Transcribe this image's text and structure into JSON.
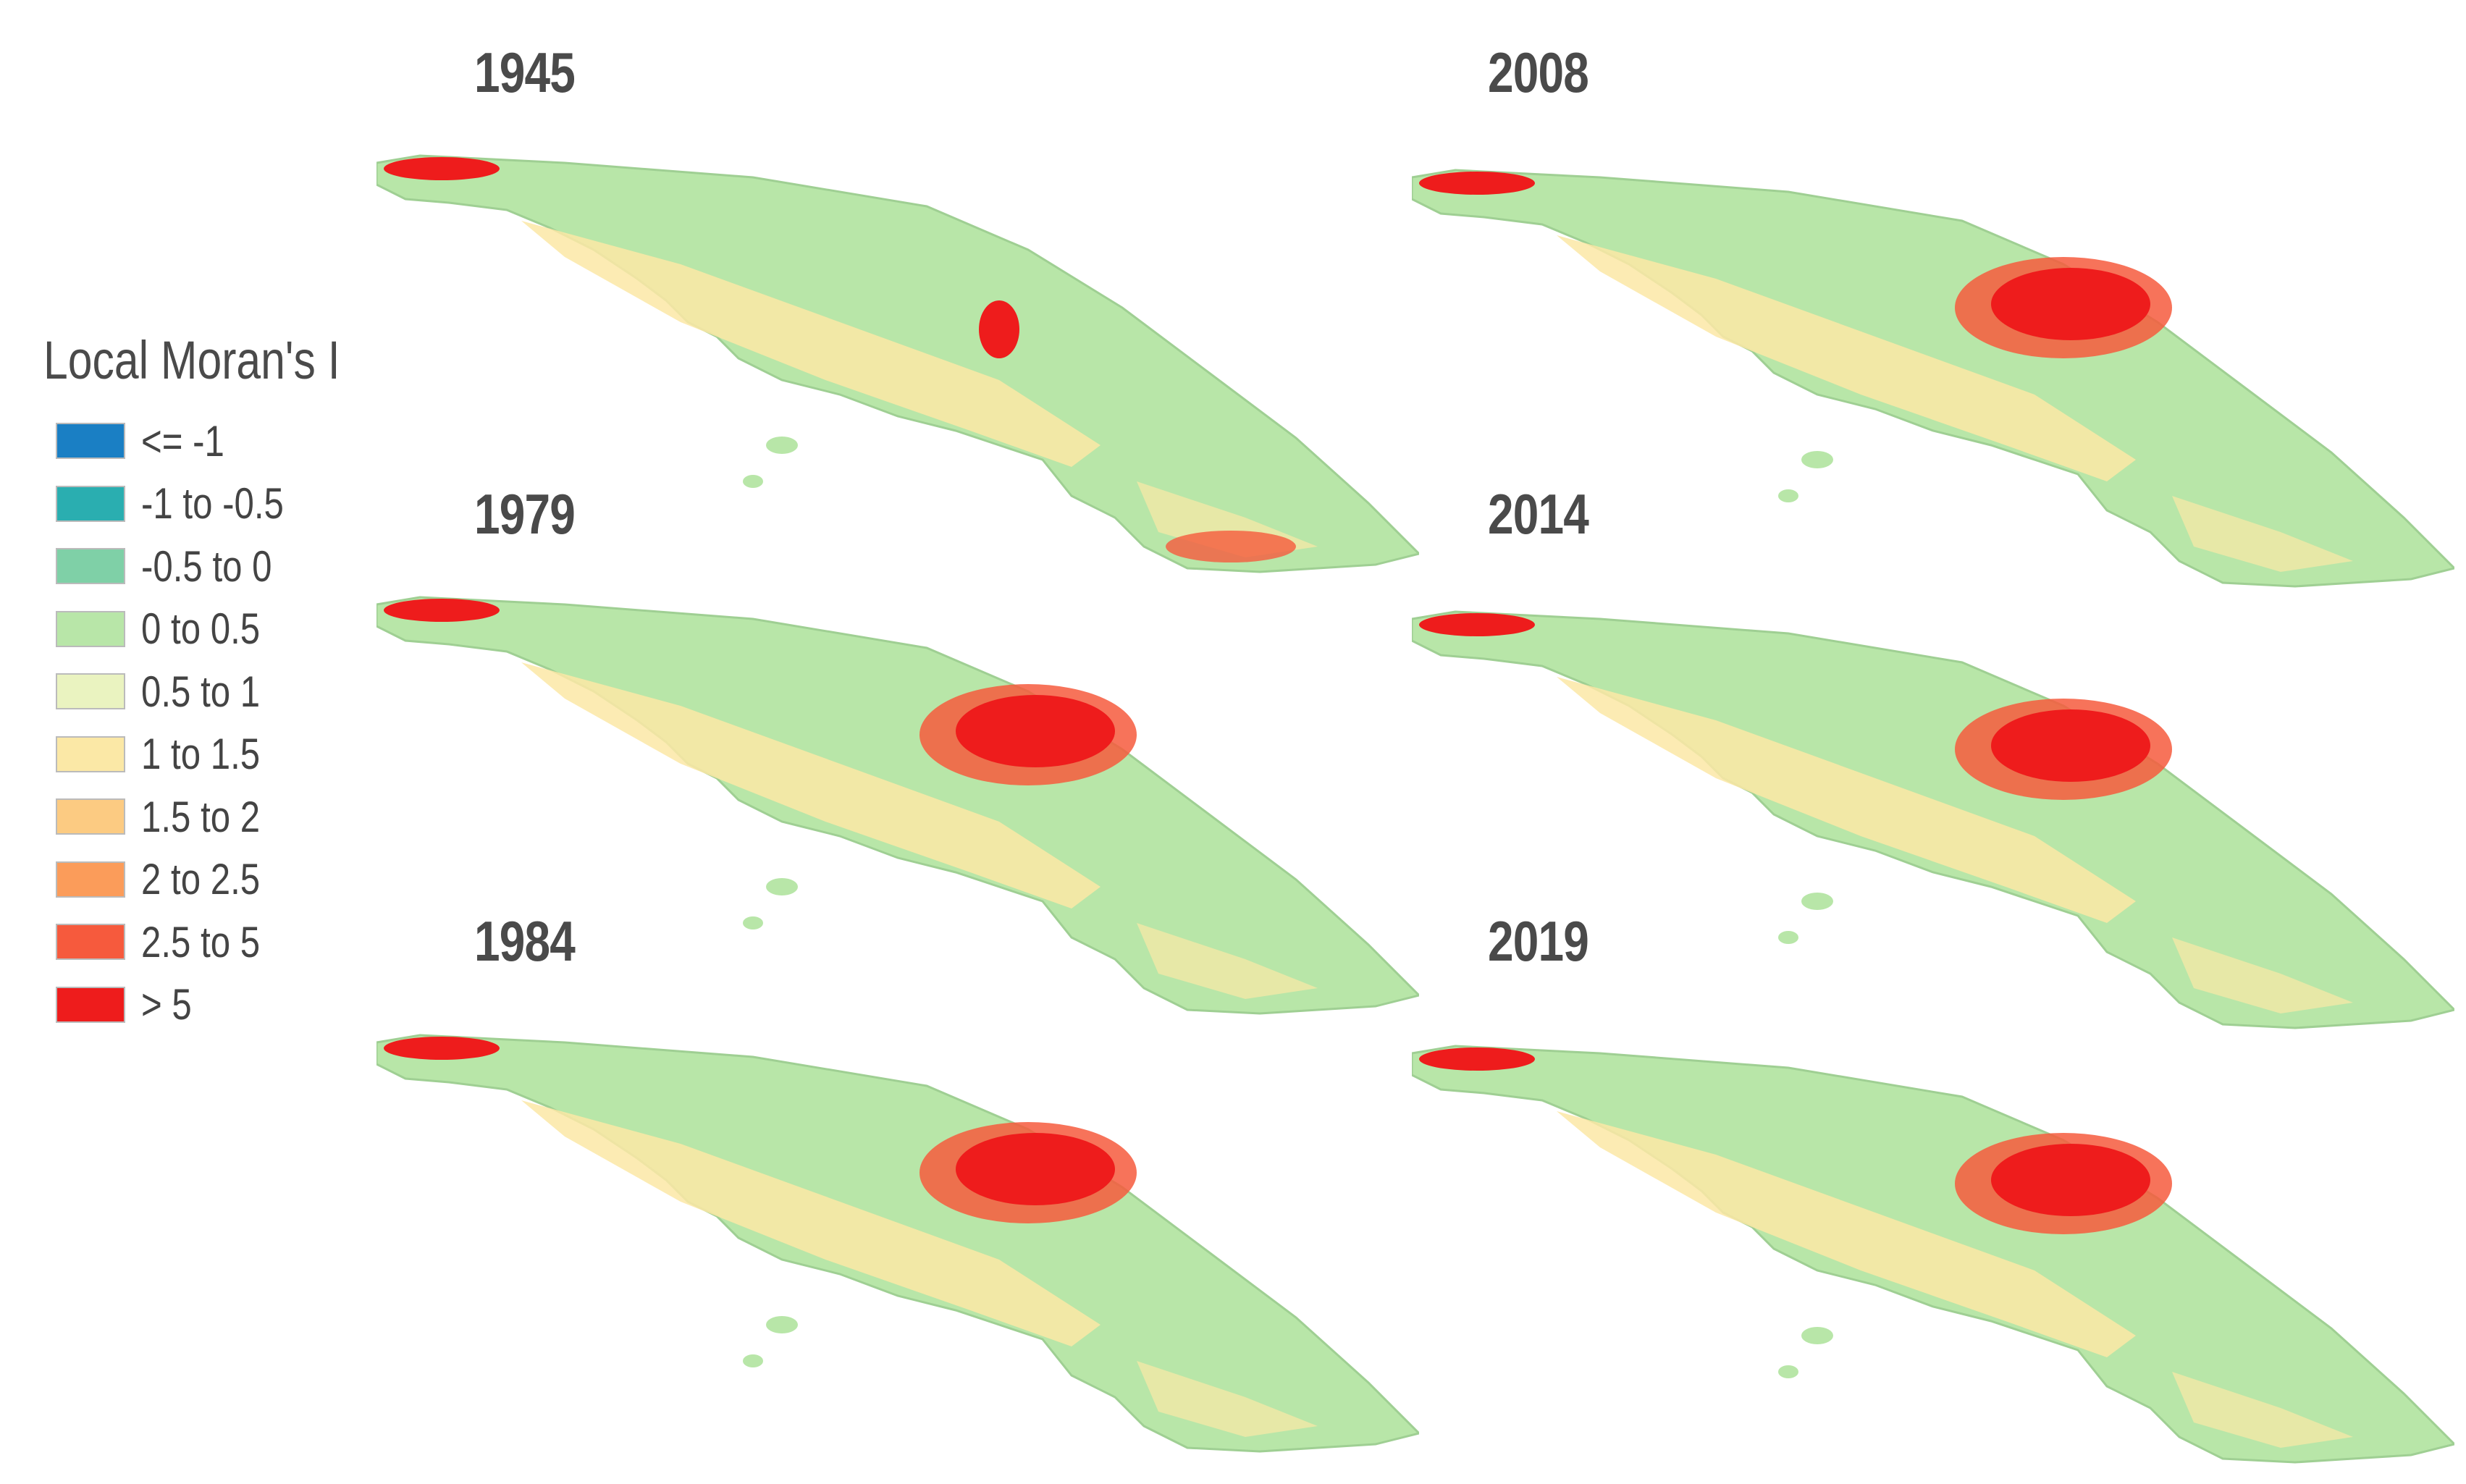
{
  "legend": {
    "title": "Local Moran's I",
    "classes": [
      {
        "label": "<= -1",
        "color": "#1a7fc4"
      },
      {
        "label": "-1 to -0.5",
        "color": "#2aaeb0"
      },
      {
        "label": "-0.5 to 0",
        "color": "#7fd0a7"
      },
      {
        "label": "0 to 0.5",
        "color": "#b8e6a8"
      },
      {
        "label": "0.5 to 1",
        "color": "#eaf3c0"
      },
      {
        "label": "1 to 1.5",
        "color": "#fbe8a6"
      },
      {
        "label": "1.5 to 2",
        "color": "#fccb82"
      },
      {
        "label": "2 to 2.5",
        "color": "#fb9c5a"
      },
      {
        "label": "2.5 to 5",
        "color": "#f65a3d"
      },
      {
        "label": "> 5",
        "color": "#ee1c1c"
      }
    ]
  },
  "maps": [
    {
      "year": "1945",
      "hotspot": "high"
    },
    {
      "year": "2008",
      "hotspot": "high"
    },
    {
      "year": "1979",
      "hotspot": "high"
    },
    {
      "year": "2014",
      "hotspot": "high"
    },
    {
      "year": "1984",
      "hotspot": "high"
    },
    {
      "year": "2019",
      "hotspot": "high"
    }
  ],
  "colors": {
    "land": "#b8e6a8",
    "land_shade": "#9fcf93",
    "warm": "#fbe8a6",
    "hot": "#f65a3d",
    "very_hot": "#ee1c1c",
    "label": "#4a4a4a"
  }
}
